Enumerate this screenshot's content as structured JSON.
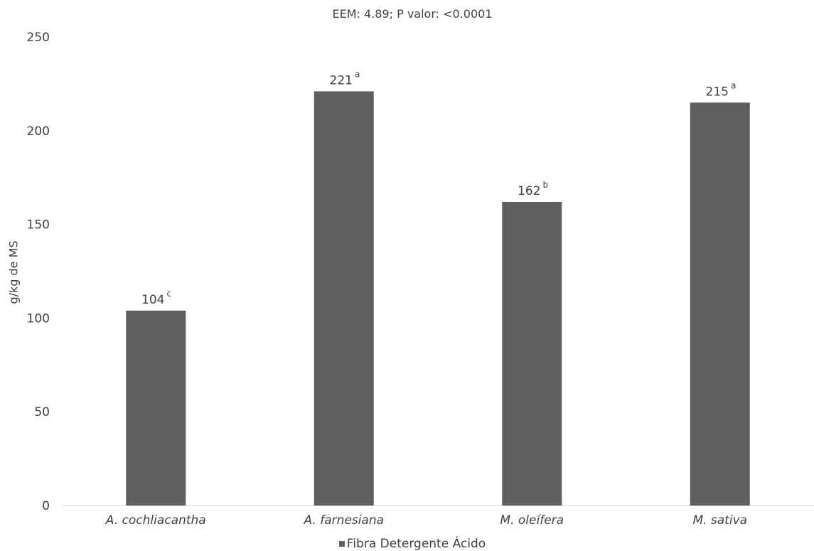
{
  "chart_data": {
    "type": "bar",
    "subtitle": "EEM: 4.89; P valor: <0.0001",
    "ylabel": "g/kg de MS",
    "xlabel": "",
    "ylim": [
      0,
      250
    ],
    "yticks": [
      0,
      50,
      100,
      150,
      200,
      250
    ],
    "grid": false,
    "categories": [
      "A. cochliacantha",
      "A. farnesiana",
      "M. oleífera",
      "M. sativa"
    ],
    "series": [
      {
        "name": "Fibra Detergente Ácido",
        "values": [
          104,
          221,
          162,
          215
        ],
        "data_labels": [
          "104",
          "221",
          "162",
          "215"
        ],
        "significance_letters": [
          "c",
          "a",
          "b",
          "a"
        ]
      }
    ],
    "legend": "bottom",
    "colors": {
      "bar": "#5f5f5f",
      "axis": "#d9d9d9",
      "text": "#404040"
    }
  }
}
